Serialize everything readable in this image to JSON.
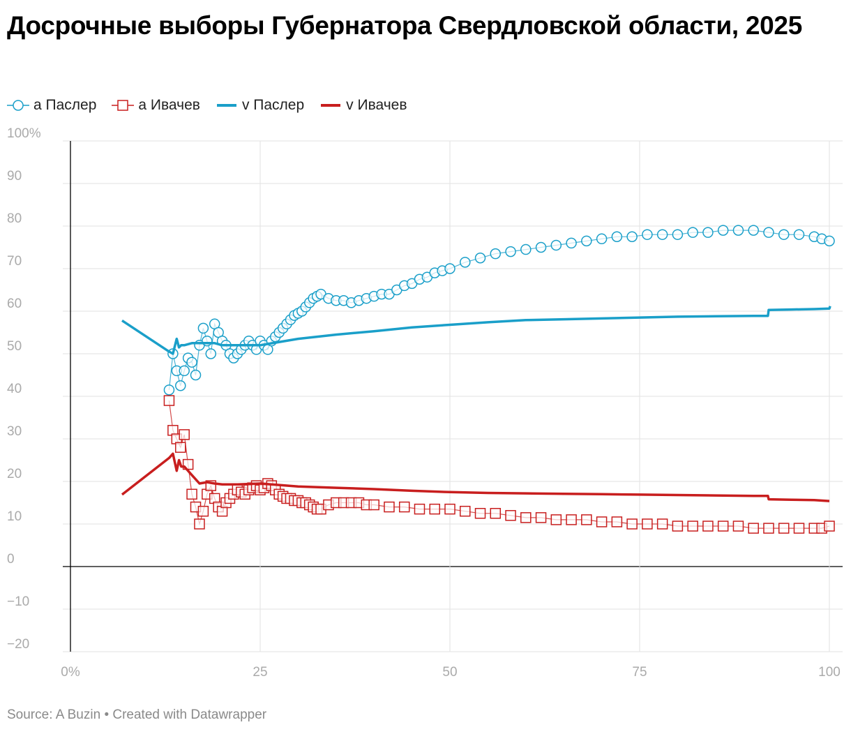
{
  "title": "Досрочные выборы Губернатора Свердловской области, 2025",
  "legend": [
    {
      "label": "a Паслер",
      "marker": "circle",
      "color": "#1a9fc9"
    },
    {
      "label": "a Ивачев",
      "marker": "square",
      "color": "#c81e1e"
    },
    {
      "label": "v Паслер",
      "marker": "line",
      "color": "#1a9fc9"
    },
    {
      "label": "v Ивачев",
      "marker": "line",
      "color": "#c81e1e"
    }
  ],
  "footer": {
    "source": "Source: A Buzin",
    "separator": "•",
    "credit": "Created with Datawrapper"
  },
  "chart_data": {
    "type": "line",
    "title": "Досрочные выборы Губернатора Свердловской области, 2025",
    "xlabel": "",
    "ylabel": "",
    "xlim": [
      0,
      100
    ],
    "ylim": [
      -20,
      100
    ],
    "x_ticks": [
      0,
      25,
      50,
      75,
      100
    ],
    "x_tick_labels": [
      "0%",
      "25",
      "50",
      "75",
      "100"
    ],
    "y_ticks": [
      -20,
      -10,
      0,
      10,
      20,
      30,
      40,
      50,
      60,
      70,
      80,
      90,
      100
    ],
    "y_tick_labels": [
      "−20",
      "−10",
      "0",
      "10",
      "20",
      "30",
      "40",
      "50",
      "60",
      "70",
      "80",
      "90",
      "100%"
    ],
    "grid": true,
    "legend_position": "top-left",
    "series": [
      {
        "name": "a Паслер",
        "style": "markers",
        "marker": "circle",
        "color": "#1a9fc9",
        "x": [
          13,
          13.5,
          14,
          14.5,
          15,
          15.5,
          16,
          16.5,
          17,
          17.5,
          18,
          18.5,
          19,
          19.5,
          20,
          20.5,
          21,
          21.5,
          22,
          22.5,
          23,
          23.5,
          24,
          24.5,
          25,
          25.5,
          26,
          26.5,
          27,
          27.5,
          28,
          28.5,
          29,
          29.5,
          30,
          30.5,
          31,
          31.5,
          32,
          32.5,
          33,
          34,
          35,
          36,
          37,
          38,
          39,
          40,
          41,
          42,
          43,
          44,
          45,
          46,
          47,
          48,
          49,
          50,
          52,
          54,
          56,
          58,
          60,
          62,
          64,
          66,
          68,
          70,
          72,
          74,
          76,
          78,
          80,
          82,
          84,
          86,
          88,
          90,
          92,
          94,
          96,
          98,
          99,
          100
        ],
        "y": [
          41.5,
          50,
          46,
          42.5,
          46,
          49,
          48,
          45,
          52,
          56,
          53,
          50,
          57,
          55,
          53,
          52,
          50,
          49,
          50,
          51,
          52,
          53,
          52,
          51,
          53,
          52,
          51,
          53,
          54,
          55,
          56,
          57,
          58,
          59,
          59.5,
          60,
          61,
          62,
          63,
          63.5,
          64,
          63,
          62.5,
          62.5,
          62,
          62.5,
          63,
          63.5,
          64,
          64,
          65,
          66,
          66.5,
          67.5,
          68,
          69,
          69.5,
          70,
          71.5,
          72.5,
          73.5,
          74,
          74.5,
          75,
          75.5,
          76,
          76.5,
          77,
          77.5,
          77.5,
          78,
          78,
          78,
          78.5,
          78.5,
          79,
          79,
          79,
          78.5,
          78,
          78,
          77.5,
          77,
          76.5
        ]
      },
      {
        "name": "a Ивачев",
        "style": "markers",
        "marker": "square",
        "color": "#c81e1e",
        "x": [
          13,
          13.5,
          14,
          14.5,
          15,
          15.5,
          16,
          16.5,
          17,
          17.5,
          18,
          18.5,
          19,
          19.5,
          20,
          20.5,
          21,
          21.5,
          22,
          22.5,
          23,
          23.5,
          24,
          24.5,
          25,
          25.5,
          26,
          26.5,
          27,
          27.5,
          28,
          28.5,
          29,
          29.5,
          30,
          30.5,
          31,
          31.5,
          32,
          32.5,
          33,
          34,
          35,
          36,
          37,
          38,
          39,
          40,
          42,
          44,
          46,
          48,
          50,
          52,
          54,
          56,
          58,
          60,
          62,
          64,
          66,
          68,
          70,
          72,
          74,
          76,
          78,
          80,
          82,
          84,
          86,
          88,
          90,
          92,
          94,
          96,
          98,
          99,
          100
        ],
        "y": [
          39,
          32,
          30,
          28,
          31,
          24,
          17,
          14,
          10,
          13,
          17,
          19,
          16,
          14,
          13,
          15,
          16,
          17,
          18,
          17.5,
          17,
          18,
          18.5,
          19,
          18,
          18.5,
          19.5,
          19,
          18,
          17,
          16.5,
          16,
          16,
          15.5,
          15.5,
          15,
          15,
          14.5,
          14,
          13.5,
          13.5,
          14.5,
          15,
          15,
          15,
          15,
          14.5,
          14.5,
          14,
          14,
          13.5,
          13.5,
          13.5,
          13,
          12.5,
          12.5,
          12,
          11.5,
          11.5,
          11,
          11,
          11,
          10.5,
          10.5,
          10,
          10,
          10,
          9.5,
          9.5,
          9.5,
          9.5,
          9.5,
          9,
          9,
          9,
          9,
          9,
          9,
          9.5
        ]
      },
      {
        "name": "v Паслер",
        "style": "line",
        "color": "#1a9fc9",
        "x": [
          6.8,
          13,
          13.5,
          14,
          14.3,
          14.6,
          15,
          16,
          17,
          18,
          19,
          20,
          22,
          25,
          30,
          35,
          40,
          45,
          50,
          55,
          60,
          65,
          70,
          75,
          80,
          85,
          90,
          91.9,
          92,
          95,
          98,
          100,
          100.1
        ],
        "y": [
          57.8,
          50.5,
          50,
          53.5,
          51.5,
          52,
          52,
          52.5,
          52.5,
          52.5,
          52.5,
          52,
          52,
          52,
          53.5,
          54.5,
          55.3,
          56.2,
          56.8,
          57.4,
          57.9,
          58.1,
          58.3,
          58.5,
          58.7,
          58.8,
          58.9,
          58.9,
          60.3,
          60.4,
          60.5,
          60.6,
          61.2
        ]
      },
      {
        "name": "v Ивачев",
        "style": "line",
        "color": "#c81e1e",
        "x": [
          6.8,
          13,
          13.5,
          14,
          14.3,
          14.6,
          15,
          16,
          17,
          18,
          19,
          20,
          22,
          25,
          30,
          35,
          40,
          45,
          50,
          55,
          60,
          65,
          70,
          75,
          80,
          85,
          90,
          91.9,
          92,
          95,
          98,
          100
        ],
        "y": [
          16.9,
          25.5,
          26.5,
          22.5,
          25,
          23.5,
          23.5,
          21.5,
          19.5,
          19.8,
          19.5,
          19.3,
          19.3,
          19.5,
          18.8,
          18.5,
          18.2,
          17.8,
          17.5,
          17.3,
          17.2,
          17.1,
          17,
          16.9,
          16.8,
          16.7,
          16.6,
          16.6,
          15.8,
          15.7,
          15.6,
          15.4
        ]
      }
    ]
  }
}
